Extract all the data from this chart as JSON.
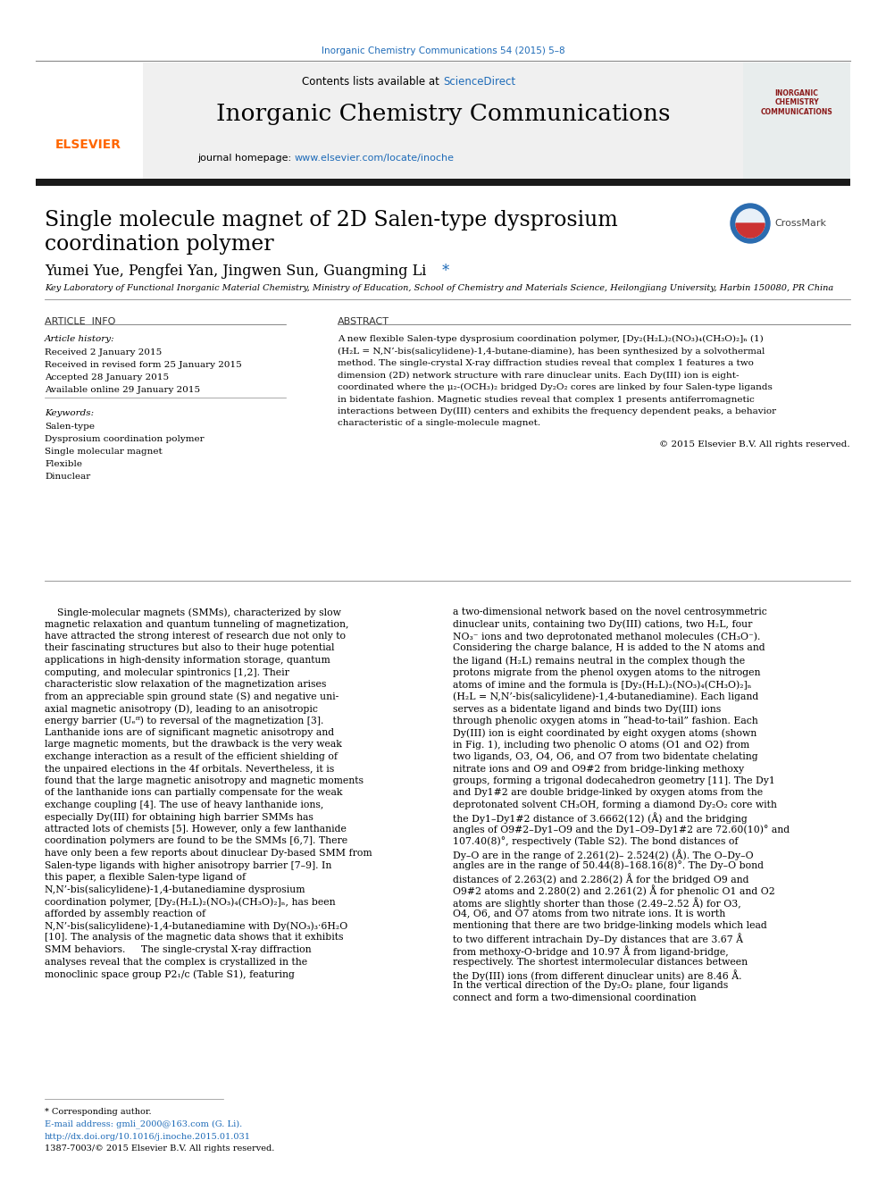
{
  "journal_title": "Inorganic Chemistry Communications",
  "journal_ref": "Inorganic Chemistry Communications 54 (2015) 5–8",
  "contents_line": "Contents lists available at ScienceDirect",
  "journal_homepage": "journal homepage: www.elsevier.com/locate/inoche",
  "paper_title_line1": "Single molecule magnet of 2D Salen-type dysprosium",
  "paper_title_line2": "coordination polymer",
  "authors": "Yumei Yue, Pengfei Yan, Jingwen Sun, Guangming Li",
  "affiliation": "Key Laboratory of Functional Inorganic Material Chemistry, Ministry of Education, School of Chemistry and Materials Science, Heilongjiang University, Harbin 150080, PR China",
  "article_info_title": "ARTICLE  INFO",
  "abstract_title": "ABSTRACT",
  "article_history_label": "Article history:",
  "received1": "Received 2 January 2015",
  "received2": "Received in revised form 25 January 2015",
  "accepted": "Accepted 28 January 2015",
  "available": "Available online 29 January 2015",
  "keywords_label": "Keywords:",
  "keyword1": "Salen-type",
  "keyword2": "Dysprosium coordination polymer",
  "keyword3": "Single molecular magnet",
  "keyword4": "Flexible",
  "keyword5": "Dinuclear",
  "abstract_text": "A new flexible Salen-type dysprosium coordination polymer, [Dy₂(H₂L)₂(NO₃)₄(CH₃O)₂]ₙ (1) (H₂L = N,N’-bis(salicylidene)-1,4-butane-diamine), has been synthesized by a solvothermal method. The single-crystal X-ray diffraction studies reveal that complex 1 features a two dimension (2D) network structure with rare dinuclear units. Each Dy(III) ion is eight-coordinated where the μ₂-(OCH₃)₂ bridged Dy₂O₂ cores are linked by four Salen-type ligands in bidentate fashion. Magnetic studies reveal that complex 1 presents antiferromagnetic interactions between Dy(III) centers and exhibits the frequency dependent peaks, a behavior characteristic of a single-molecule magnet.",
  "copyright": "© 2015 Elsevier B.V. All rights reserved.",
  "body_col1": "    Single-molecular magnets (SMMs), characterized by slow magnetic relaxation and quantum tunneling of magnetization, have attracted the strong interest of research due not only to their fascinating structures but also to their huge potential applications in high-density information storage, quantum computing, and molecular spintronics [1,2]. Their characteristic slow relaxation of the magnetization arises from an appreciable spin ground state (S) and negative uni-axial magnetic anisotropy (D), leading to an anisotropic energy barrier (Uₑᶠᶠ) to reversal of the magnetization [3]. Lanthanide ions are of significant magnetic anisotropy and large magnetic moments, but the drawback is the very weak exchange interaction as a result of the efficient shielding of the unpaired elections in the 4f orbitals. Nevertheless, it is found that the large magnetic anisotropy and magnetic moments of the lanthanide ions can partially compensate for the weak exchange coupling [4]. The use of heavy lanthanide ions, especially Dy(III) for obtaining high barrier SMMs has attracted lots of chemists [5]. However, only a few lanthanide coordination polymers are found to be the SMMs [6,7]. There have only been a few reports about dinuclear Dy-based SMM from Salen-type ligands with higher anisotropy barrier [7–9]. In this paper, a flexible Salen-type ligand of N,N’-bis(salicylidene)-1,4-butanediamine dysprosium coordination polymer, [Dy₂(H₂L)₂(NO₃)₄(CH₃O)₂]ₙ, has been afforded by assembly reaction of N,N’-bis(salicylidene)-1,4-butanediamine with Dy(NO₃)₃·6H₂O [10]. The analysis of the magnetic data shows that it exhibits SMM behaviors.\n    The single-crystal X-ray diffraction analyses reveal that the complex is crystallized in the monoclinic space group P2₁/c (Table S1), featuring",
  "body_col2": "a two-dimensional network based on the novel centrosymmetric dinuclear units, containing two Dy(III) cations, two H₂L, four NO₃⁻ ions and two deprotonated methanol molecules (CH₃O⁻). Considering the charge balance, H is added to the N atoms and the ligand (H₂L) remains neutral in the complex though the protons migrate from the phenol oxygen atoms to the nitrogen atoms of imine and the formula is [Dy₂(H₂L)₂(NO₃)₄(CH₃O)₂]ₙ (H₂L = N,N’-bis(salicylidene)-1,4-butanediamine). Each ligand serves as a bidentate ligand and binds two Dy(III) ions through phenolic oxygen atoms in “head-to-tail” fashion. Each Dy(III) ion is eight coordinated by eight oxygen atoms (shown in Fig. 1), including two phenolic O atoms (O1 and O2) from two ligands, O3, O4, O6, and O7 from two bidentate chelating nitrate ions and O9 and O9#2 from bridge-linking methoxy groups, forming a trigonal dodecahedron geometry [11]. The Dy1 and Dy1#2 are double bridge-linked by oxygen atoms from the deprotonated solvent CH₃OH, forming a diamond Dy₂O₂ core with the Dy1–Dy1#2 distance of 3.6662(12) (Å) and the bridging angles of O9#2–Dy1–O9 and the Dy1–O9–Dy1#2 are 72.60(10)° and 107.40(8)°, respectively (Table S2). The bond distances of Dy–O are in the range of 2.261(2)– 2.524(2) (Å). The O–Dy–O angles are in the range of 50.44(8)–168.16(8)°. The Dy–O bond distances of 2.263(2) and 2.286(2) Å for the bridged O9 and O9#2 atoms and 2.280(2) and 2.261(2) Å for phenolic O1 and O2 atoms are slightly shorter than those (2.49–2.52 Å) for O3, O4, O6, and O7 atoms from two nitrate ions. It is worth mentioning that there are two bridge-linking models which lead to two different intrachain Dy–Dy distances that are 3.67 Å from methoxy-O-bridge and 10.97 Å from ligand-bridge, respectively. The shortest intermolecular distances between the Dy(III) ions (from different dinuclear units) are 8.46 Å. In the vertical direction of the Dy₂O₂ plane, four ligands connect and form a two-dimensional coordination",
  "footnote1": "* Corresponding author.",
  "footnote2": "E-mail address: gmli_2000@163.com (G. Li).",
  "doi": "http://dx.doi.org/10.1016/j.inoche.2015.01.031",
  "issn": "1387-7003/© 2015 Elsevier B.V. All rights reserved.",
  "header_bg": "#f0f0f0",
  "link_color": "#1e6bb8",
  "elsevier_orange": "#FF6600",
  "body_bg": "#ffffff",
  "text_color": "#000000",
  "separator_color": "#000000",
  "thick_bar_color": "#1a1a1a"
}
